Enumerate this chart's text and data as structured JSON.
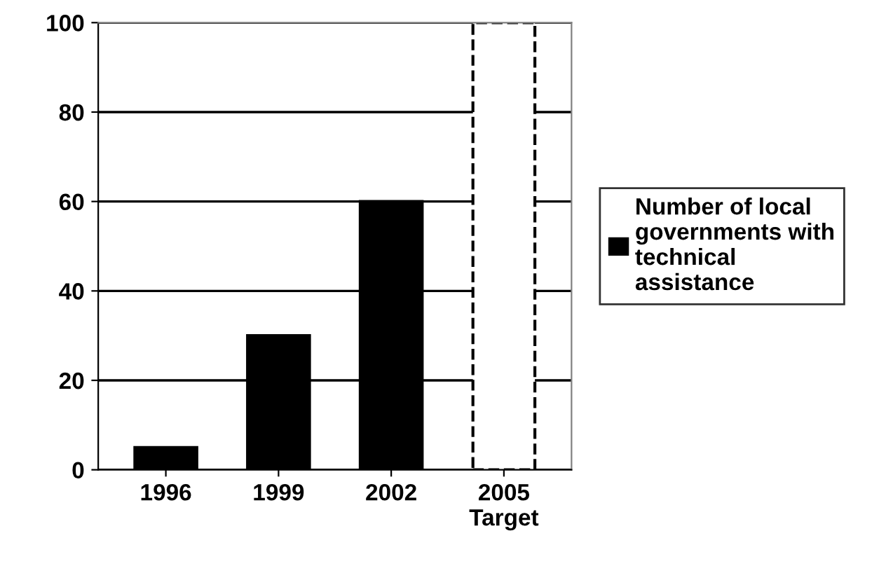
{
  "chart_data": {
    "type": "bar",
    "categories": [
      "1996",
      "1999",
      "2002",
      "2005\nTarget"
    ],
    "series": [
      {
        "name": "Number of local governments with technical assistance",
        "color": "#000000",
        "values": [
          5,
          30,
          60,
          null
        ]
      },
      {
        "color": "#ffffff",
        "line_style": "dashed",
        "values": [
          null,
          null,
          null,
          100
        ]
      }
    ],
    "ylim": [
      0,
      100
    ],
    "yticks": [
      0,
      20,
      40,
      60,
      80,
      100
    ],
    "grid": "y",
    "legend": "right"
  }
}
